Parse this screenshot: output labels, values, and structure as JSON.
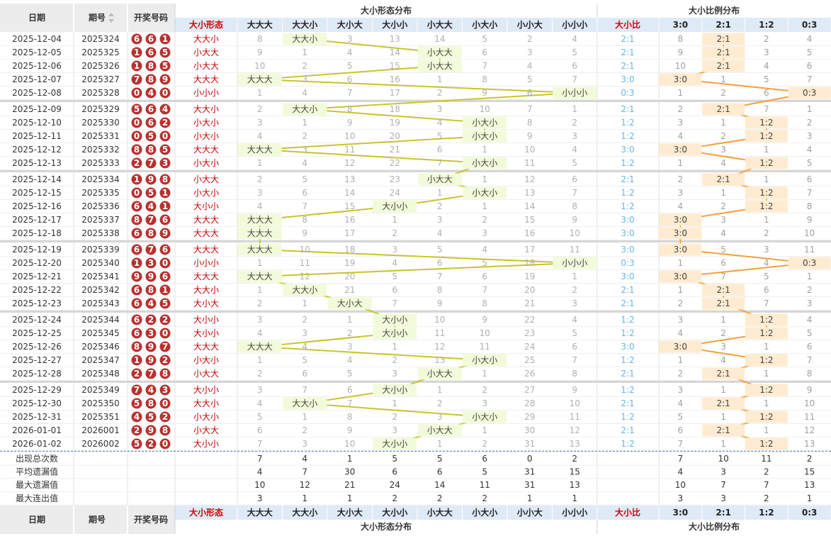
{
  "header": {
    "date": "日期",
    "issue": "期号",
    "numbers": "开奖号码",
    "form": "大小形态",
    "form_group": "大小形态分布",
    "ratio": "大小比",
    "ratio_group": "大小比例分布",
    "form_columns": [
      "大大大",
      "大大小",
      "大小大",
      "大小小",
      "小大大",
      "小大小",
      "小小大",
      "小小小"
    ],
    "ratio_columns": [
      "3:0",
      "2:1",
      "1:2",
      "0:3"
    ]
  },
  "rows": [
    {
      "date": "2025-12-04",
      "issue": "2025324",
      "numbers": [
        6,
        6,
        1
      ],
      "form": "大大小",
      "form_miss": [
        8,
        "大大小",
        3,
        13,
        14,
        5,
        2,
        4
      ],
      "ratio": "2:1",
      "ratio_miss": [
        8,
        "2:1",
        2,
        4
      ]
    },
    {
      "date": "2025-12-05",
      "issue": "2025325",
      "numbers": [
        1,
        6,
        5
      ],
      "form": "小大大",
      "form_miss": [
        9,
        1,
        4,
        14,
        "小大大",
        6,
        3,
        5
      ],
      "ratio": "2:1",
      "ratio_miss": [
        9,
        "2:1",
        3,
        5
      ]
    },
    {
      "date": "2025-12-06",
      "issue": "2025326",
      "numbers": [
        1,
        8,
        5
      ],
      "form": "小大大",
      "form_miss": [
        10,
        2,
        5,
        15,
        "小大大",
        7,
        4,
        6
      ],
      "ratio": "2:1",
      "ratio_miss": [
        10,
        "2:1",
        4,
        6
      ]
    },
    {
      "date": "2025-12-07",
      "issue": "2025327",
      "numbers": [
        7,
        8,
        9
      ],
      "form": "大大大",
      "form_miss": [
        "大大大",
        3,
        6,
        16,
        1,
        8,
        5,
        7
      ],
      "ratio": "3:0",
      "ratio_miss": [
        "3:0",
        1,
        5,
        7
      ]
    },
    {
      "date": "2025-12-08",
      "issue": "2025328",
      "numbers": [
        0,
        4,
        0
      ],
      "form": "小小小",
      "form_miss": [
        1,
        4,
        7,
        17,
        2,
        9,
        6,
        "小小小"
      ],
      "ratio": "0:3",
      "ratio_miss": [
        1,
        2,
        6,
        "0:3"
      ]
    },
    {
      "date": "2025-12-09",
      "issue": "2025329",
      "numbers": [
        5,
        6,
        4
      ],
      "form": "大大小",
      "form_miss": [
        2,
        "大大小",
        8,
        18,
        3,
        10,
        7,
        1
      ],
      "ratio": "2:1",
      "ratio_miss": [
        2,
        "2:1",
        7,
        1
      ]
    },
    {
      "date": "2025-12-10",
      "issue": "2025330",
      "numbers": [
        0,
        6,
        2
      ],
      "form": "小大小",
      "form_miss": [
        3,
        1,
        9,
        19,
        4,
        "小大小",
        8,
        2
      ],
      "ratio": "1:2",
      "ratio_miss": [
        3,
        1,
        "1:2",
        2
      ]
    },
    {
      "date": "2025-12-11",
      "issue": "2025331",
      "numbers": [
        0,
        5,
        0
      ],
      "form": "小大小",
      "form_miss": [
        4,
        2,
        10,
        20,
        5,
        "小大小",
        9,
        3
      ],
      "ratio": "1:2",
      "ratio_miss": [
        4,
        2,
        "1:2",
        3
      ]
    },
    {
      "date": "2025-12-12",
      "issue": "2025332",
      "numbers": [
        8,
        8,
        5
      ],
      "form": "大大大",
      "form_miss": [
        "大大大",
        3,
        11,
        21,
        6,
        1,
        10,
        4
      ],
      "ratio": "3:0",
      "ratio_miss": [
        "3:0",
        3,
        1,
        4
      ]
    },
    {
      "date": "2025-12-13",
      "issue": "2025333",
      "numbers": [
        2,
        7,
        3
      ],
      "form": "小大小",
      "form_miss": [
        1,
        4,
        12,
        22,
        7,
        "小大小",
        11,
        5
      ],
      "ratio": "1:2",
      "ratio_miss": [
        1,
        4,
        "1:2",
        5
      ]
    },
    {
      "date": "2025-12-14",
      "issue": "2025334",
      "numbers": [
        1,
        9,
        8
      ],
      "form": "小大大",
      "form_miss": [
        2,
        5,
        13,
        23,
        "小大大",
        1,
        12,
        6
      ],
      "ratio": "2:1",
      "ratio_miss": [
        2,
        "2:1",
        1,
        6
      ]
    },
    {
      "date": "2025-12-15",
      "issue": "2025335",
      "numbers": [
        0,
        5,
        1
      ],
      "form": "小大小",
      "form_miss": [
        3,
        6,
        14,
        24,
        1,
        "小大小",
        13,
        7
      ],
      "ratio": "1:2",
      "ratio_miss": [
        3,
        1,
        "1:2",
        7
      ]
    },
    {
      "date": "2025-12-16",
      "issue": "2025336",
      "numbers": [
        6,
        4,
        1
      ],
      "form": "大小小",
      "form_miss": [
        4,
        7,
        15,
        "大小小",
        2,
        1,
        14,
        8
      ],
      "ratio": "1:2",
      "ratio_miss": [
        4,
        2,
        "1:2",
        8
      ]
    },
    {
      "date": "2025-12-17",
      "issue": "2025337",
      "numbers": [
        8,
        7,
        6
      ],
      "form": "大大大",
      "form_miss": [
        "大大大",
        8,
        16,
        1,
        3,
        2,
        15,
        9
      ],
      "ratio": "3:0",
      "ratio_miss": [
        "3:0",
        3,
        1,
        9
      ]
    },
    {
      "date": "2025-12-18",
      "issue": "2025338",
      "numbers": [
        6,
        8,
        9
      ],
      "form": "大大大",
      "form_miss": [
        "大大大",
        9,
        17,
        2,
        4,
        3,
        16,
        10
      ],
      "ratio": "3:0",
      "ratio_miss": [
        "3:0",
        4,
        2,
        10
      ]
    },
    {
      "date": "2025-12-19",
      "issue": "2025339",
      "numbers": [
        6,
        7,
        6
      ],
      "form": "大大大",
      "form_miss": [
        "大大大",
        10,
        18,
        3,
        5,
        4,
        17,
        11
      ],
      "ratio": "3:0",
      "ratio_miss": [
        "3:0",
        5,
        3,
        11
      ]
    },
    {
      "date": "2025-12-20",
      "issue": "2025340",
      "numbers": [
        1,
        3,
        0
      ],
      "form": "小小小",
      "form_miss": [
        1,
        11,
        19,
        4,
        6,
        5,
        18,
        "小小小"
      ],
      "ratio": "0:3",
      "ratio_miss": [
        1,
        6,
        4,
        "0:3"
      ]
    },
    {
      "date": "2025-12-21",
      "issue": "2025341",
      "numbers": [
        9,
        9,
        6
      ],
      "form": "大大大",
      "form_miss": [
        "大大大",
        12,
        20,
        5,
        7,
        6,
        19,
        1
      ],
      "ratio": "3:0",
      "ratio_miss": [
        "3:0",
        7,
        5,
        1
      ]
    },
    {
      "date": "2025-12-22",
      "issue": "2025342",
      "numbers": [
        6,
        8,
        1
      ],
      "form": "大大小",
      "form_miss": [
        1,
        "大大小",
        21,
        6,
        8,
        7,
        20,
        2
      ],
      "ratio": "2:1",
      "ratio_miss": [
        1,
        "2:1",
        6,
        2
      ]
    },
    {
      "date": "2025-12-23",
      "issue": "2025343",
      "numbers": [
        6,
        4,
        5
      ],
      "form": "大小大",
      "form_miss": [
        2,
        1,
        "大小大",
        7,
        9,
        8,
        21,
        3
      ],
      "ratio": "2:1",
      "ratio_miss": [
        2,
        "2:1",
        7,
        3
      ]
    },
    {
      "date": "2025-12-24",
      "issue": "2025344",
      "numbers": [
        6,
        2,
        2
      ],
      "form": "大小小",
      "form_miss": [
        3,
        2,
        1,
        "大小小",
        10,
        9,
        22,
        4
      ],
      "ratio": "1:2",
      "ratio_miss": [
        3,
        1,
        "1:2",
        4
      ]
    },
    {
      "date": "2025-12-25",
      "issue": "2025345",
      "numbers": [
        6,
        3,
        0
      ],
      "form": "大小小",
      "form_miss": [
        4,
        3,
        2,
        "大小小",
        11,
        10,
        23,
        5
      ],
      "ratio": "1:2",
      "ratio_miss": [
        4,
        2,
        "1:2",
        5
      ]
    },
    {
      "date": "2025-12-26",
      "issue": "2025346",
      "numbers": [
        8,
        9,
        7
      ],
      "form": "大大大",
      "form_miss": [
        "大大大",
        4,
        3,
        1,
        12,
        11,
        24,
        6
      ],
      "ratio": "3:0",
      "ratio_miss": [
        "3:0",
        3,
        1,
        6
      ]
    },
    {
      "date": "2025-12-27",
      "issue": "2025347",
      "numbers": [
        1,
        9,
        2
      ],
      "form": "小大小",
      "form_miss": [
        1,
        5,
        4,
        2,
        13,
        "小大小",
        25,
        7
      ],
      "ratio": "1:2",
      "ratio_miss": [
        1,
        4,
        "1:2",
        7
      ]
    },
    {
      "date": "2025-12-28",
      "issue": "2025348",
      "numbers": [
        2,
        7,
        8
      ],
      "form": "小大大",
      "form_miss": [
        2,
        6,
        5,
        3,
        "小大大",
        1,
        26,
        8
      ],
      "ratio": "2:1",
      "ratio_miss": [
        2,
        "2:1",
        1,
        8
      ]
    },
    {
      "date": "2025-12-29",
      "issue": "2025349",
      "numbers": [
        7,
        4,
        3
      ],
      "form": "大小小",
      "form_miss": [
        3,
        7,
        6,
        "大小小",
        1,
        2,
        27,
        9
      ],
      "ratio": "1:2",
      "ratio_miss": [
        3,
        1,
        "1:2",
        9
      ]
    },
    {
      "date": "2025-12-30",
      "issue": "2025350",
      "numbers": [
        5,
        8,
        0
      ],
      "form": "大大小",
      "form_miss": [
        4,
        "大大小",
        7,
        1,
        2,
        3,
        28,
        10
      ],
      "ratio": "2:1",
      "ratio_miss": [
        4,
        "2:1",
        1,
        10
      ]
    },
    {
      "date": "2025-12-31",
      "issue": "2025351",
      "numbers": [
        4,
        5,
        2
      ],
      "form": "小大小",
      "form_miss": [
        5,
        1,
        8,
        2,
        3,
        "小大小",
        29,
        11
      ],
      "ratio": "1:2",
      "ratio_miss": [
        5,
        1,
        "1:2",
        11
      ]
    },
    {
      "date": "2026-01-01",
      "issue": "2026001",
      "numbers": [
        2,
        9,
        8
      ],
      "form": "小大大",
      "form_miss": [
        6,
        2,
        9,
        3,
        "小大大",
        1,
        30,
        12
      ],
      "ratio": "2:1",
      "ratio_miss": [
        6,
        "2:1",
        1,
        12
      ]
    },
    {
      "date": "2026-01-02",
      "issue": "2026002",
      "numbers": [
        5,
        2,
        0
      ],
      "form": "大小小",
      "form_miss": [
        7,
        3,
        10,
        "大小小",
        1,
        2,
        31,
        13
      ],
      "ratio": "1:2",
      "ratio_miss": [
        7,
        1,
        "1:2",
        13
      ]
    }
  ],
  "stats": [
    {
      "label": "出现总次数",
      "form": [
        7,
        4,
        1,
        5,
        5,
        6,
        0,
        2
      ],
      "ratio": [
        7,
        10,
        11,
        2
      ]
    },
    {
      "label": "平均遗漏值",
      "form": [
        4,
        7,
        30,
        6,
        6,
        5,
        31,
        15
      ],
      "ratio": [
        4,
        3,
        2,
        15
      ]
    },
    {
      "label": "最大遗漏值",
      "form": [
        10,
        12,
        21,
        24,
        14,
        11,
        31,
        13
      ],
      "ratio": [
        10,
        7,
        7,
        13
      ]
    },
    {
      "label": "最大连出值",
      "form": [
        3,
        1,
        1,
        2,
        2,
        2,
        1,
        1
      ],
      "ratio": [
        3,
        3,
        2,
        1
      ]
    }
  ]
}
